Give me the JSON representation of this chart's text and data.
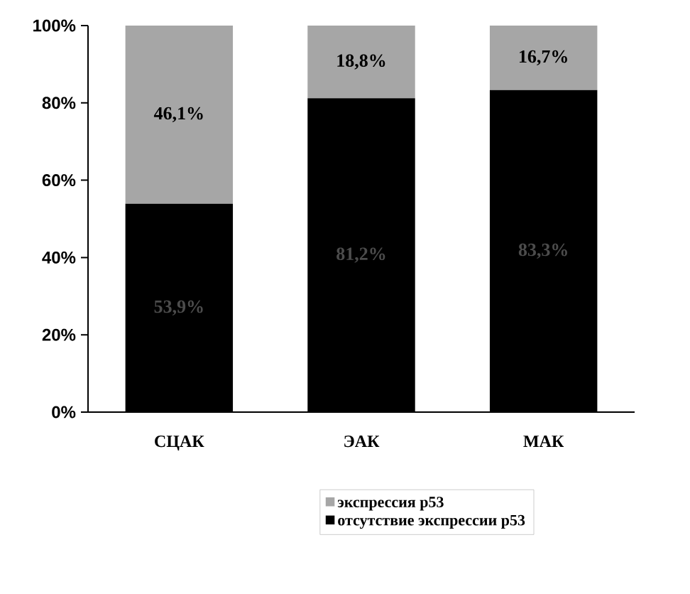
{
  "chart_data": {
    "type": "bar",
    "stacked": true,
    "categories": [
      "СЦАК",
      "ЭАК",
      "МАК"
    ],
    "series": [
      {
        "name": "отсутствие экспрессии p53",
        "color": "#000000",
        "values": [
          53.9,
          81.2,
          83.3
        ],
        "value_labels": [
          "53,9%",
          "81,2%",
          "83,3%"
        ]
      },
      {
        "name": "экспрессия p53",
        "color": "#a6a6a6",
        "values": [
          46.1,
          18.8,
          16.7
        ],
        "value_labels": [
          "46,1%",
          "18,8%",
          "16,7%"
        ]
      }
    ],
    "ylim": [
      0,
      100
    ],
    "yticks": [
      {
        "value": 0,
        "label": "0%"
      },
      {
        "value": 20,
        "label": "20%"
      },
      {
        "value": 40,
        "label": "40%"
      },
      {
        "value": 60,
        "label": "60%"
      },
      {
        "value": 80,
        "label": "80%"
      },
      {
        "value": 100,
        "label": "100%"
      }
    ],
    "grid": false,
    "legend": "bottom"
  }
}
